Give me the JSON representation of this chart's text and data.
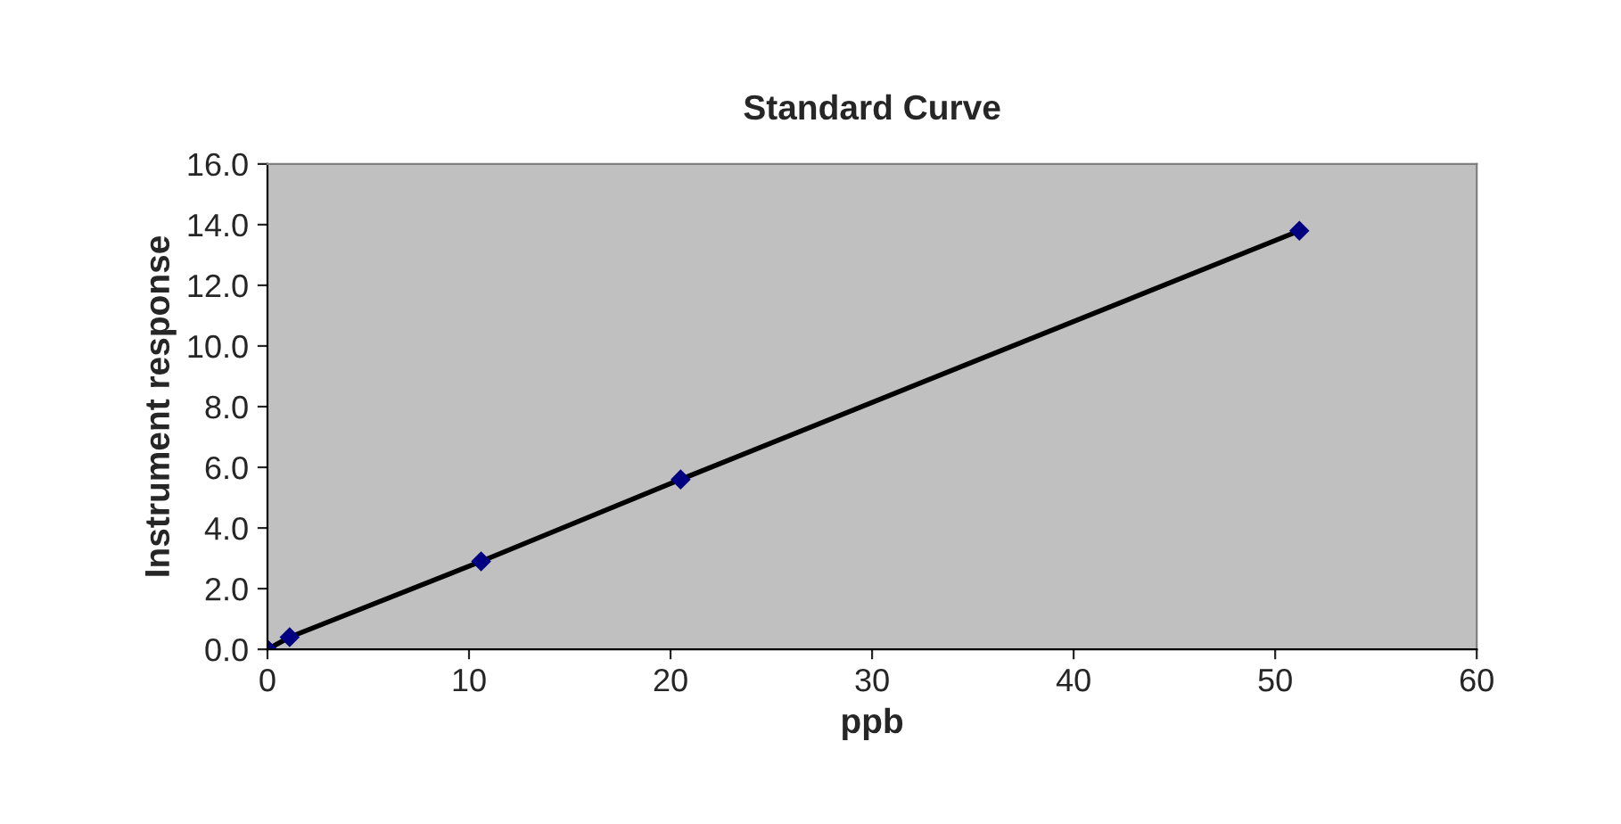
{
  "chart_data": {
    "type": "line",
    "title": "Standard Curve",
    "xlabel": "ppb",
    "ylabel": "Instrument response",
    "x": [
      0,
      1.1,
      10.6,
      20.5,
      51.2
    ],
    "series": [
      {
        "color": "#000000",
        "values": [
          0,
          0.4,
          2.9,
          5.6,
          13.8
        ]
      }
    ],
    "xlim": [
      0,
      60
    ],
    "xticks": [
      0,
      10,
      20,
      30,
      40,
      50,
      60
    ],
    "ylim": [
      0,
      16
    ],
    "yticks": [
      {
        "value": 0,
        "label": "0.0"
      },
      {
        "value": 2,
        "label": "2.0"
      },
      {
        "value": 4,
        "label": "4.0"
      },
      {
        "value": 6,
        "label": "6.0"
      },
      {
        "value": 8,
        "label": "8.0"
      },
      {
        "value": 10,
        "label": "10.0"
      },
      {
        "value": 12,
        "label": "12.0"
      },
      {
        "value": 14,
        "label": "14.0"
      },
      {
        "value": 16,
        "label": "16.0"
      }
    ],
    "marker": "diamond",
    "line_style": "solid",
    "grid": false,
    "legend": false
  }
}
